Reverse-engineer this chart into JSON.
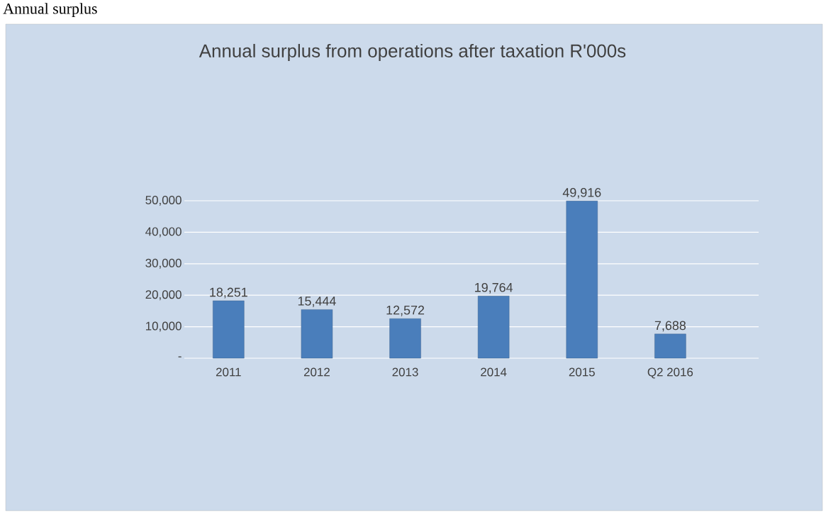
{
  "chart_data": {
    "type": "bar",
    "title": "Annual surplus from operations after taxation R'000s",
    "annotations": [
      "Annual surplus"
    ],
    "categories": [
      "2011",
      "2012",
      "2013",
      "2014",
      "2015",
      "Q2 2016"
    ],
    "values": [
      18251,
      15444,
      12572,
      19764,
      49916,
      7688
    ],
    "value_labels": [
      "18,251",
      "15,444",
      "12,572",
      "19,764",
      "49,916",
      "7,688"
    ],
    "color": "#4a7ebb",
    "ylim": [
      0,
      50000
    ],
    "yticks": [
      {
        "value": 0,
        "label": "-"
      },
      {
        "value": 10000,
        "label": "10,000"
      },
      {
        "value": 20000,
        "label": "20,000"
      },
      {
        "value": 30000,
        "label": "30,000"
      },
      {
        "value": 40000,
        "label": "40,000"
      },
      {
        "value": 50000,
        "label": "50,000"
      }
    ],
    "grid": "y"
  }
}
